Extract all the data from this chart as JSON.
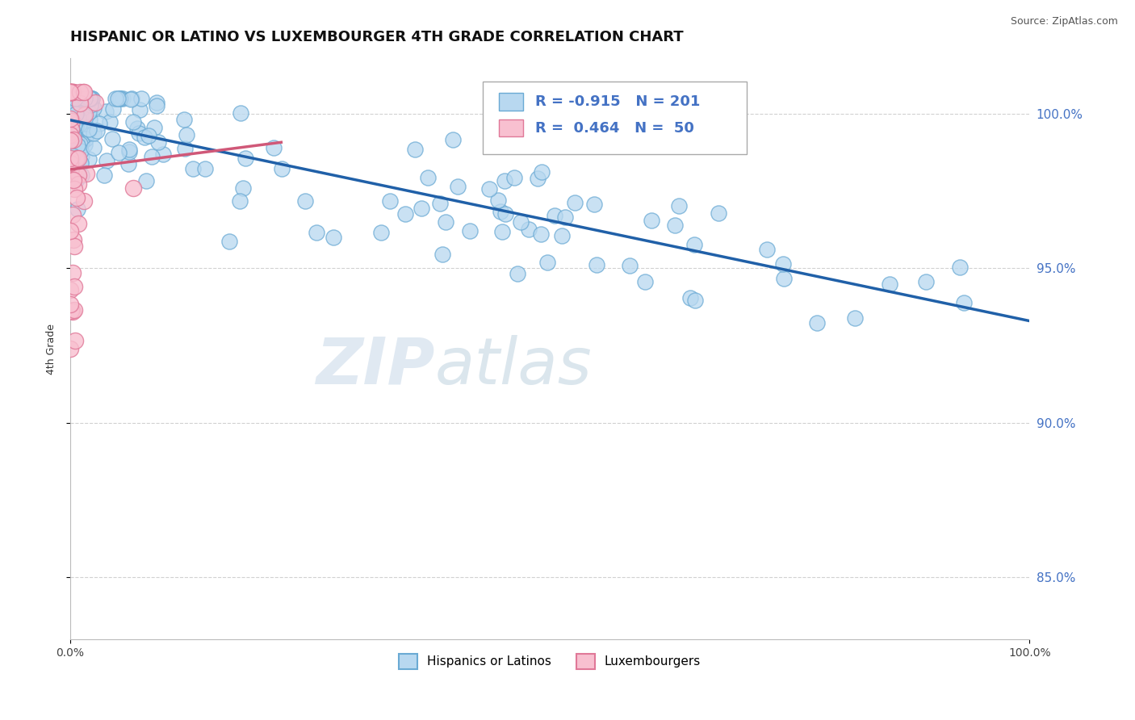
{
  "title": "HISPANIC OR LATINO VS LUXEMBOURGER 4TH GRADE CORRELATION CHART",
  "source_text": "Source: ZipAtlas.com",
  "ylabel": "4th Grade",
  "xlim": [
    0.0,
    1.0
  ],
  "ylim": [
    0.83,
    1.018
  ],
  "blue_R": -0.915,
  "blue_N": 201,
  "pink_R": 0.464,
  "pink_N": 50,
  "blue_color": "#b8d8f0",
  "blue_edge_color": "#6aaad4",
  "pink_color": "#f8c0d0",
  "pink_edge_color": "#e07898",
  "blue_line_color": "#2060a8",
  "pink_line_color": "#d05878",
  "watermark_zip_color": "#c0cfe0",
  "watermark_atlas_color": "#a8c0d8",
  "ytick_labels": [
    "85.0%",
    "90.0%",
    "95.0%",
    "100.0%"
  ],
  "ytick_values": [
    0.85,
    0.9,
    0.95,
    1.0
  ],
  "xtick_labels": [
    "0.0%",
    "100.0%"
  ],
  "xtick_values": [
    0.0,
    1.0
  ],
  "legend_label_blue": "Hispanics or Latinos",
  "legend_label_pink": "Luxembourgers",
  "title_fontsize": 13,
  "axis_label_fontsize": 9,
  "tick_fontsize": 10,
  "blue_intercept": 0.998,
  "blue_slope": -0.065,
  "pink_intercept": 0.982,
  "pink_slope": 0.04
}
